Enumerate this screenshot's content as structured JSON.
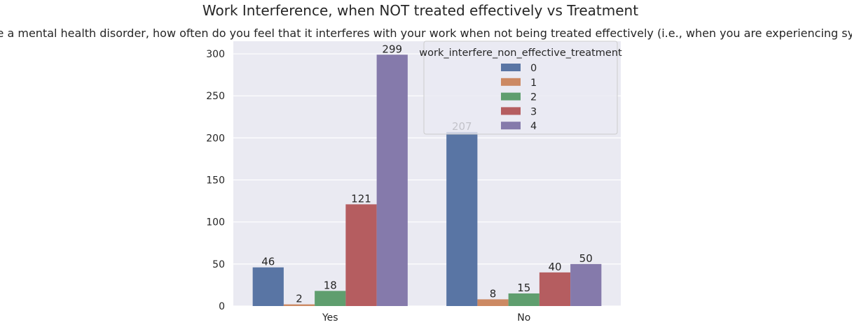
{
  "chart_data": {
    "type": "bar",
    "title": "Work Interference, when NOT treated effectively vs Treatment",
    "subtitle": "if you have a mental health disorder, how often do you feel that it interferes with your work when not being treated effectively (i.e., when you are experiencing symptoms)?",
    "xlabel": "",
    "ylabel": "",
    "categories": [
      "Yes",
      "No"
    ],
    "ylim": [
      0,
      315
    ],
    "yticks": [
      0,
      50,
      100,
      150,
      200,
      250,
      300
    ],
    "grid": true,
    "legend": {
      "title": "work_interfere_non_effective_treatment",
      "placement": "top-right"
    },
    "series": [
      {
        "name": "0",
        "color": "#5975a4",
        "values": [
          46,
          207
        ]
      },
      {
        "name": "1",
        "color": "#cc8963",
        "values": [
          2,
          8
        ]
      },
      {
        "name": "2",
        "color": "#5f9e6e",
        "values": [
          18,
          15
        ]
      },
      {
        "name": "3",
        "color": "#b55d60",
        "values": [
          121,
          40
        ]
      },
      {
        "name": "4",
        "color": "#857aab",
        "values": [
          299,
          50
        ]
      }
    ]
  }
}
